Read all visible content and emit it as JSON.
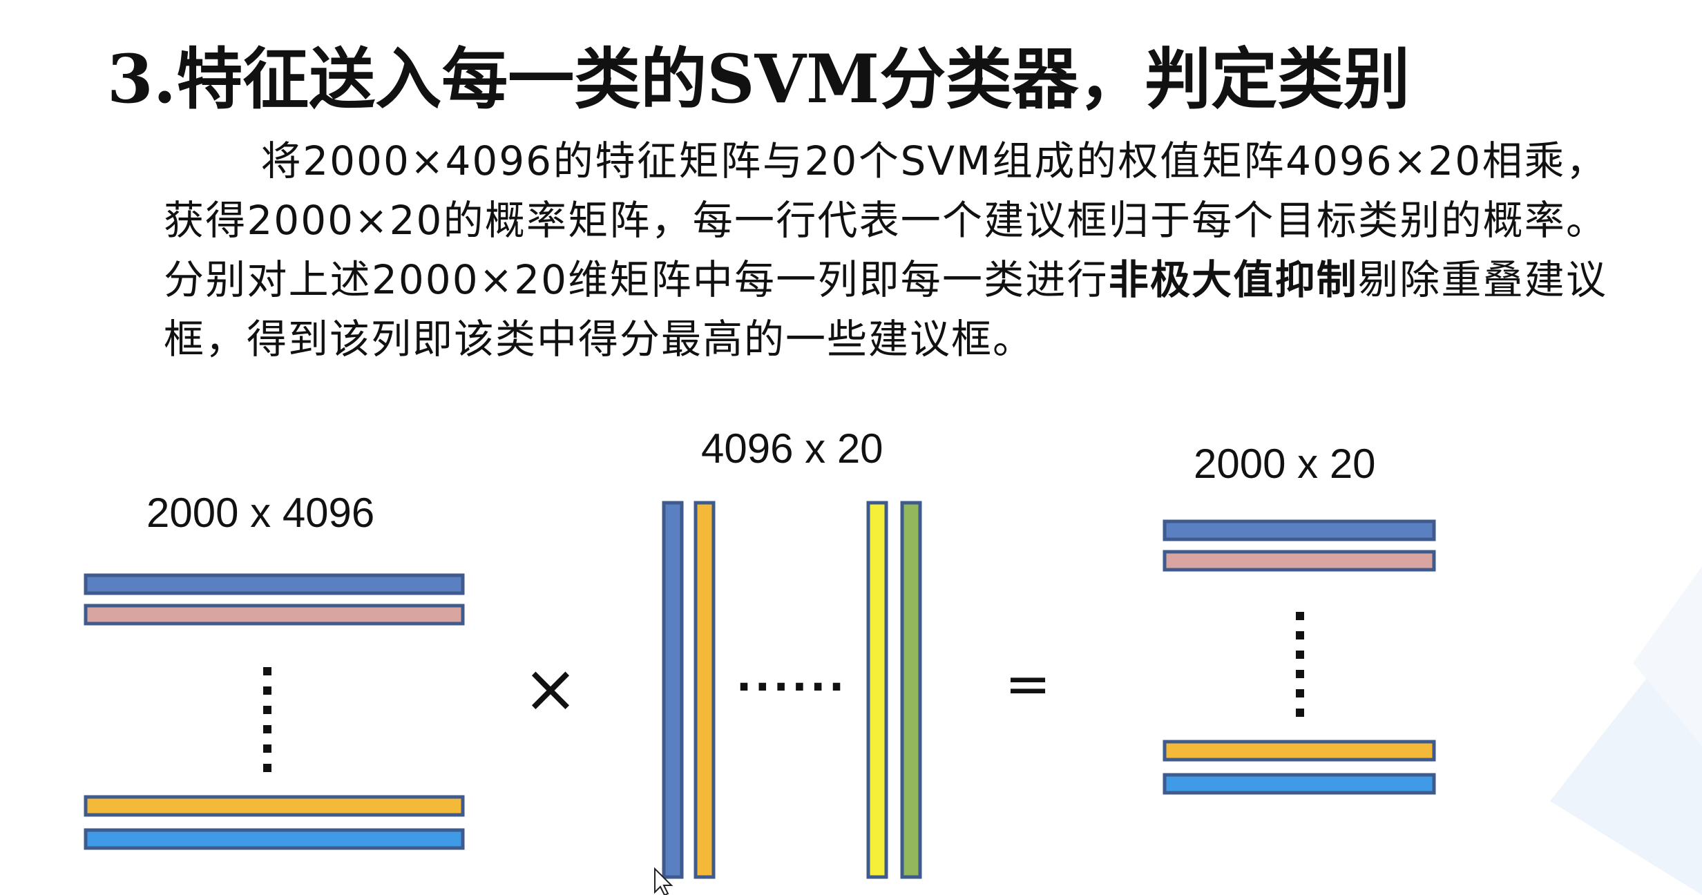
{
  "title": "3.特征送入每一类的SVM分类器，判定类别",
  "paragraph": {
    "part1": "将2000×4096的特征矩阵与20个SVM组成的权值矩阵4096×20相乘，获得2000×20的概率矩阵，每一行代表一个建议框归于每个目标类别的概率。分别对上述2000×20维矩阵中每一列即每一类进行",
    "bold": "非极大值抑制",
    "part2": "剔除重叠建议框，得到该列即该类中得分最高的一些建议框。"
  },
  "matrices": {
    "left_label": "2000 x 4096",
    "middle_label": "4096 x 20",
    "right_label": "2000 x 20",
    "times_symbol": "×",
    "equals_symbol": "=",
    "ellipsis": "......"
  },
  "colors": {
    "blue": "#5b80c2",
    "pink": "#d9a5a1",
    "orange": "#f5b93a",
    "light_blue": "#3f9be6",
    "yellow": "#f5ef3a",
    "green": "#93b75d",
    "stroke": "#3f5a8c",
    "dots": "#111111"
  }
}
